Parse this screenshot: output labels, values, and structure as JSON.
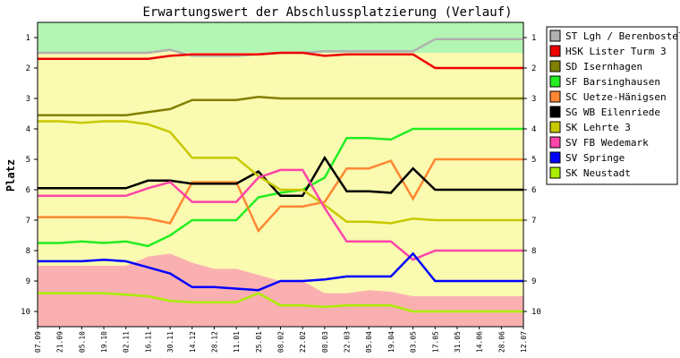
{
  "chart_data": {
    "type": "line",
    "title": "Erwartungswert der Abschlussplatzierung (Verlauf)",
    "ylabel": "Platz",
    "xlabel": "",
    "ylim": [
      0.5,
      10.5
    ],
    "y_inverted": true,
    "y_ticks": [
      1,
      2,
      3,
      4,
      5,
      6,
      7,
      8,
      9,
      10
    ],
    "x": [
      "07.09",
      "21.09",
      "05.10",
      "19.10",
      "02.11",
      "16.11",
      "30.11",
      "14.12",
      "28.12",
      "11.01",
      "25.01",
      "08.02",
      "22.02",
      "08.03",
      "22.03",
      "05.04",
      "19.04",
      "03.05",
      "17.05",
      "31.05",
      "14.06",
      "28.06",
      "12.07"
    ],
    "grid": false,
    "legend_position": "right",
    "background_zones": [
      {
        "name": "promotion",
        "color": "#b3f5b3",
        "boundary": [
          1.5,
          1.5,
          1.5,
          1.5,
          1.5,
          1.5,
          1.45,
          1.5,
          1.5,
          1.5,
          1.5,
          1.5,
          1.5,
          1.5,
          1.5,
          1.5,
          1.5,
          1.5,
          1.5,
          1.5,
          1.5,
          1.5,
          1.5
        ]
      },
      {
        "name": "middle",
        "color": "#fafab0"
      },
      {
        "name": "relegation",
        "color": "#fab0b0",
        "boundary": [
          8.5,
          8.5,
          8.5,
          8.5,
          8.5,
          8.2,
          8.1,
          8.4,
          8.6,
          8.6,
          8.8,
          9.0,
          9.0,
          9.4,
          9.4,
          9.3,
          9.35,
          9.5,
          9.5,
          9.5,
          9.5,
          9.5,
          9.5
        ]
      }
    ],
    "series": [
      {
        "name": "ST Lgh / Berenbostel",
        "color": "#b0b0b0",
        "values": [
          1.5,
          1.5,
          1.5,
          1.5,
          1.5,
          1.5,
          1.4,
          1.6,
          1.6,
          1.6,
          1.55,
          1.5,
          1.5,
          1.45,
          1.45,
          1.45,
          1.45,
          1.45,
          1.05,
          1.05,
          1.05,
          1.05,
          1.05
        ]
      },
      {
        "name": "HSK Lister Turm 3",
        "color": "#ee0000",
        "values": [
          1.7,
          1.7,
          1.7,
          1.7,
          1.7,
          1.7,
          1.6,
          1.55,
          1.55,
          1.55,
          1.55,
          1.5,
          1.5,
          1.6,
          1.55,
          1.55,
          1.55,
          1.55,
          2.0,
          2.0,
          2.0,
          2.0,
          2.0
        ]
      },
      {
        "name": "SD Isernhagen",
        "color": "#808000",
        "values": [
          3.55,
          3.55,
          3.55,
          3.55,
          3.55,
          3.45,
          3.35,
          3.05,
          3.05,
          3.05,
          2.95,
          3.0,
          3.0,
          3.0,
          3.0,
          3.0,
          3.0,
          3.0,
          3.0,
          3.0,
          3.0,
          3.0,
          3.0
        ]
      },
      {
        "name": "SF Barsinghausen",
        "color": "#22ee22",
        "values": [
          7.75,
          7.75,
          7.7,
          7.75,
          7.7,
          7.85,
          7.5,
          7.0,
          7.0,
          7.0,
          6.25,
          6.1,
          6.0,
          5.6,
          4.3,
          4.3,
          4.35,
          4.0,
          4.0,
          4.0,
          4.0,
          4.0,
          4.0
        ]
      },
      {
        "name": "SC Uetze-Hänigsen",
        "color": "#ff8833",
        "values": [
          6.9,
          6.9,
          6.9,
          6.9,
          6.9,
          6.95,
          7.1,
          5.75,
          5.75,
          5.75,
          7.35,
          6.55,
          6.55,
          6.4,
          5.3,
          5.3,
          5.05,
          6.3,
          5.0,
          5.0,
          5.0,
          5.0,
          5.0
        ]
      },
      {
        "name": "SG WB Eilenriede",
        "color": "#000000",
        "values": [
          5.95,
          5.95,
          5.95,
          5.95,
          5.95,
          5.7,
          5.7,
          5.8,
          5.8,
          5.8,
          5.4,
          6.2,
          6.2,
          4.95,
          6.05,
          6.05,
          6.1,
          5.3,
          6.0,
          6.0,
          6.0,
          6.0,
          6.0
        ]
      },
      {
        "name": "SK Lehrte 3",
        "color": "#c8c800",
        "values": [
          3.75,
          3.75,
          3.8,
          3.75,
          3.75,
          3.85,
          4.1,
          4.95,
          4.95,
          4.95,
          5.55,
          6.0,
          6.0,
          6.5,
          7.05,
          7.05,
          7.1,
          6.95,
          7.0,
          7.0,
          7.0,
          7.0,
          7.0
        ]
      },
      {
        "name": "SV FB Wedemark",
        "color": "#ff44aa",
        "values": [
          6.2,
          6.2,
          6.2,
          6.2,
          6.2,
          5.95,
          5.75,
          6.4,
          6.4,
          6.4,
          5.6,
          5.35,
          5.35,
          6.6,
          7.7,
          7.7,
          7.7,
          8.3,
          8.0,
          8.0,
          8.0,
          8.0,
          8.0
        ]
      },
      {
        "name": "SV Springe",
        "color": "#0000ff",
        "values": [
          8.35,
          8.35,
          8.35,
          8.3,
          8.35,
          8.55,
          8.75,
          9.2,
          9.2,
          9.25,
          9.3,
          9.0,
          9.0,
          8.95,
          8.85,
          8.85,
          8.85,
          8.1,
          9.0,
          9.0,
          9.0,
          9.0,
          9.0
        ]
      },
      {
        "name": "SK Neustadt",
        "color": "#aaee00",
        "values": [
          9.4,
          9.4,
          9.4,
          9.4,
          9.45,
          9.5,
          9.65,
          9.7,
          9.7,
          9.7,
          9.4,
          9.8,
          9.8,
          9.85,
          9.8,
          9.8,
          9.8,
          10.0,
          10.0,
          10.0,
          10.0,
          10.0,
          10.0
        ]
      }
    ]
  }
}
